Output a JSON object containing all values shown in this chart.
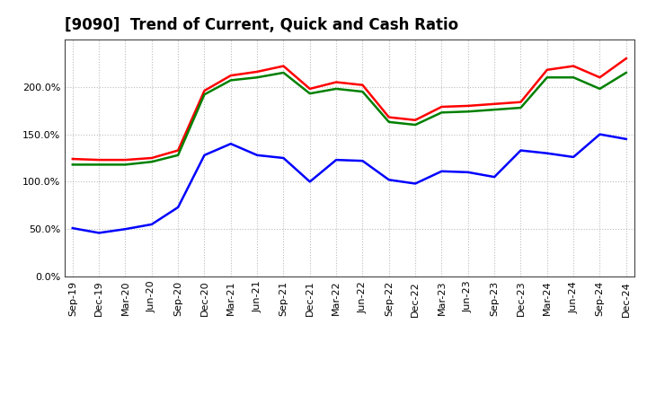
{
  "title": "[9090]  Trend of Current, Quick and Cash Ratio",
  "x_labels": [
    "Sep-19",
    "Dec-19",
    "Mar-20",
    "Jun-20",
    "Sep-20",
    "Dec-20",
    "Mar-21",
    "Jun-21",
    "Sep-21",
    "Dec-21",
    "Mar-22",
    "Jun-22",
    "Sep-22",
    "Dec-22",
    "Mar-23",
    "Jun-23",
    "Sep-23",
    "Dec-23",
    "Mar-24",
    "Jun-24",
    "Sep-24",
    "Dec-24"
  ],
  "current_ratio": [
    1.24,
    1.23,
    1.23,
    1.25,
    1.33,
    1.96,
    2.12,
    2.16,
    2.22,
    1.98,
    2.05,
    2.02,
    1.68,
    1.65,
    1.79,
    1.8,
    1.82,
    1.84,
    2.18,
    2.22,
    2.1,
    2.3
  ],
  "quick_ratio": [
    1.18,
    1.18,
    1.18,
    1.21,
    1.28,
    1.92,
    2.07,
    2.1,
    2.15,
    1.93,
    1.98,
    1.95,
    1.63,
    1.6,
    1.73,
    1.74,
    1.76,
    1.78,
    2.1,
    2.1,
    1.98,
    2.15
  ],
  "cash_ratio": [
    0.51,
    0.46,
    0.5,
    0.55,
    0.73,
    1.28,
    1.4,
    1.28,
    1.25,
    1.0,
    1.23,
    1.22,
    1.02,
    0.98,
    1.11,
    1.1,
    1.05,
    1.33,
    1.3,
    1.26,
    1.5,
    1.45
  ],
  "current_color": "#FF0000",
  "quick_color": "#008000",
  "cash_color": "#0000FF",
  "ylim": [
    0.0,
    2.5
  ],
  "yticks": [
    0.0,
    0.5,
    1.0,
    1.5,
    2.0
  ],
  "ytick_labels": [
    "0.0%",
    "50.0%",
    "100.0%",
    "150.0%",
    "200.0%"
  ],
  "background_color": "#FFFFFF",
  "plot_bg_color": "#FFFFFF",
  "grid_color": "#AAAAAA",
  "line_width": 1.8,
  "title_fontsize": 12,
  "legend_fontsize": 9.5,
  "tick_fontsize": 8
}
